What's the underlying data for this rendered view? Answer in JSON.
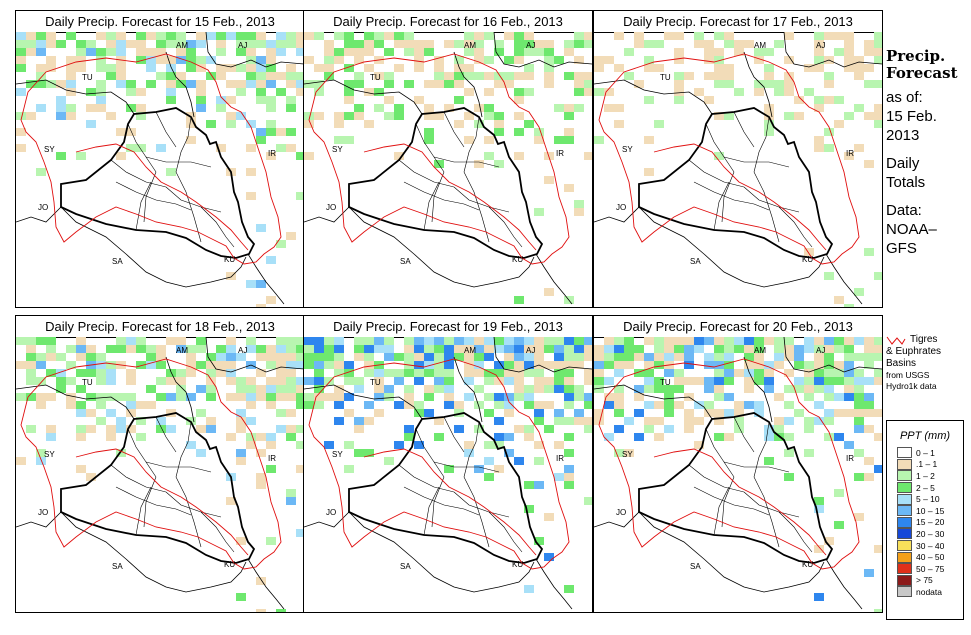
{
  "panels": [
    {
      "title": "Daily Precip. Forecast for  15 Feb., 2013",
      "intensity": 1
    },
    {
      "title": "Daily Precip. Forecast for  16 Feb., 2013",
      "intensity": 0.8
    },
    {
      "title": "Daily Precip. Forecast for  17 Feb., 2013",
      "intensity": 0.6
    },
    {
      "title": "Daily Precip. Forecast for  18 Feb., 2013",
      "intensity": 1
    },
    {
      "title": "Daily Precip. Forecast for  19 Feb., 2013",
      "intensity": 1.2
    },
    {
      "title": "Daily Precip. Forecast for  20 Feb., 2013",
      "intensity": 1.1
    }
  ],
  "map_labels": [
    "AM",
    "AJ",
    "TU",
    "SY",
    "IR",
    "JO",
    "SA",
    "KU"
  ],
  "sidebar": {
    "heading_1": "Precip.",
    "heading_2": "Forecast",
    "asof": "as of:",
    "date_1": "15 Feb.",
    "date_2": "2013",
    "daily_1": "Daily",
    "daily_2": "Totals",
    "data_1": "Data:",
    "data_2": "NOAA–",
    "data_3": "GFS"
  },
  "basin_legend": {
    "line_1": "Tigres",
    "line_2": "& Euphrates",
    "line_3": "Basins",
    "line_4": "from USGS",
    "line_5": "Hydro1k data"
  },
  "ppt_legend": {
    "header": "PPT (mm)",
    "items": [
      {
        "label": "0 – 1",
        "color": "#ffffff"
      },
      {
        "label": ".1 – 1",
        "color": "#f2dcb8"
      },
      {
        "label": "1 – 2",
        "color": "#b8f5b0"
      },
      {
        "label": "2 – 5",
        "color": "#6ee86e"
      },
      {
        "label": "5 – 10",
        "color": "#a8e0f8"
      },
      {
        "label": "10 – 15",
        "color": "#6cb8f5"
      },
      {
        "label": "15 – 20",
        "color": "#2e86ee"
      },
      {
        "label": "20 – 30",
        "color": "#1648d8"
      },
      {
        "label": "30 – 40",
        "color": "#f8e05a"
      },
      {
        "label": "40 – 50",
        "color": "#f5a018"
      },
      {
        "label": "50 – 75",
        "color": "#e0301a"
      },
      {
        "label": "> 75",
        "color": "#8c1a1a"
      },
      {
        "label": "nodata",
        "color": "#c8c8c8"
      }
    ]
  }
}
